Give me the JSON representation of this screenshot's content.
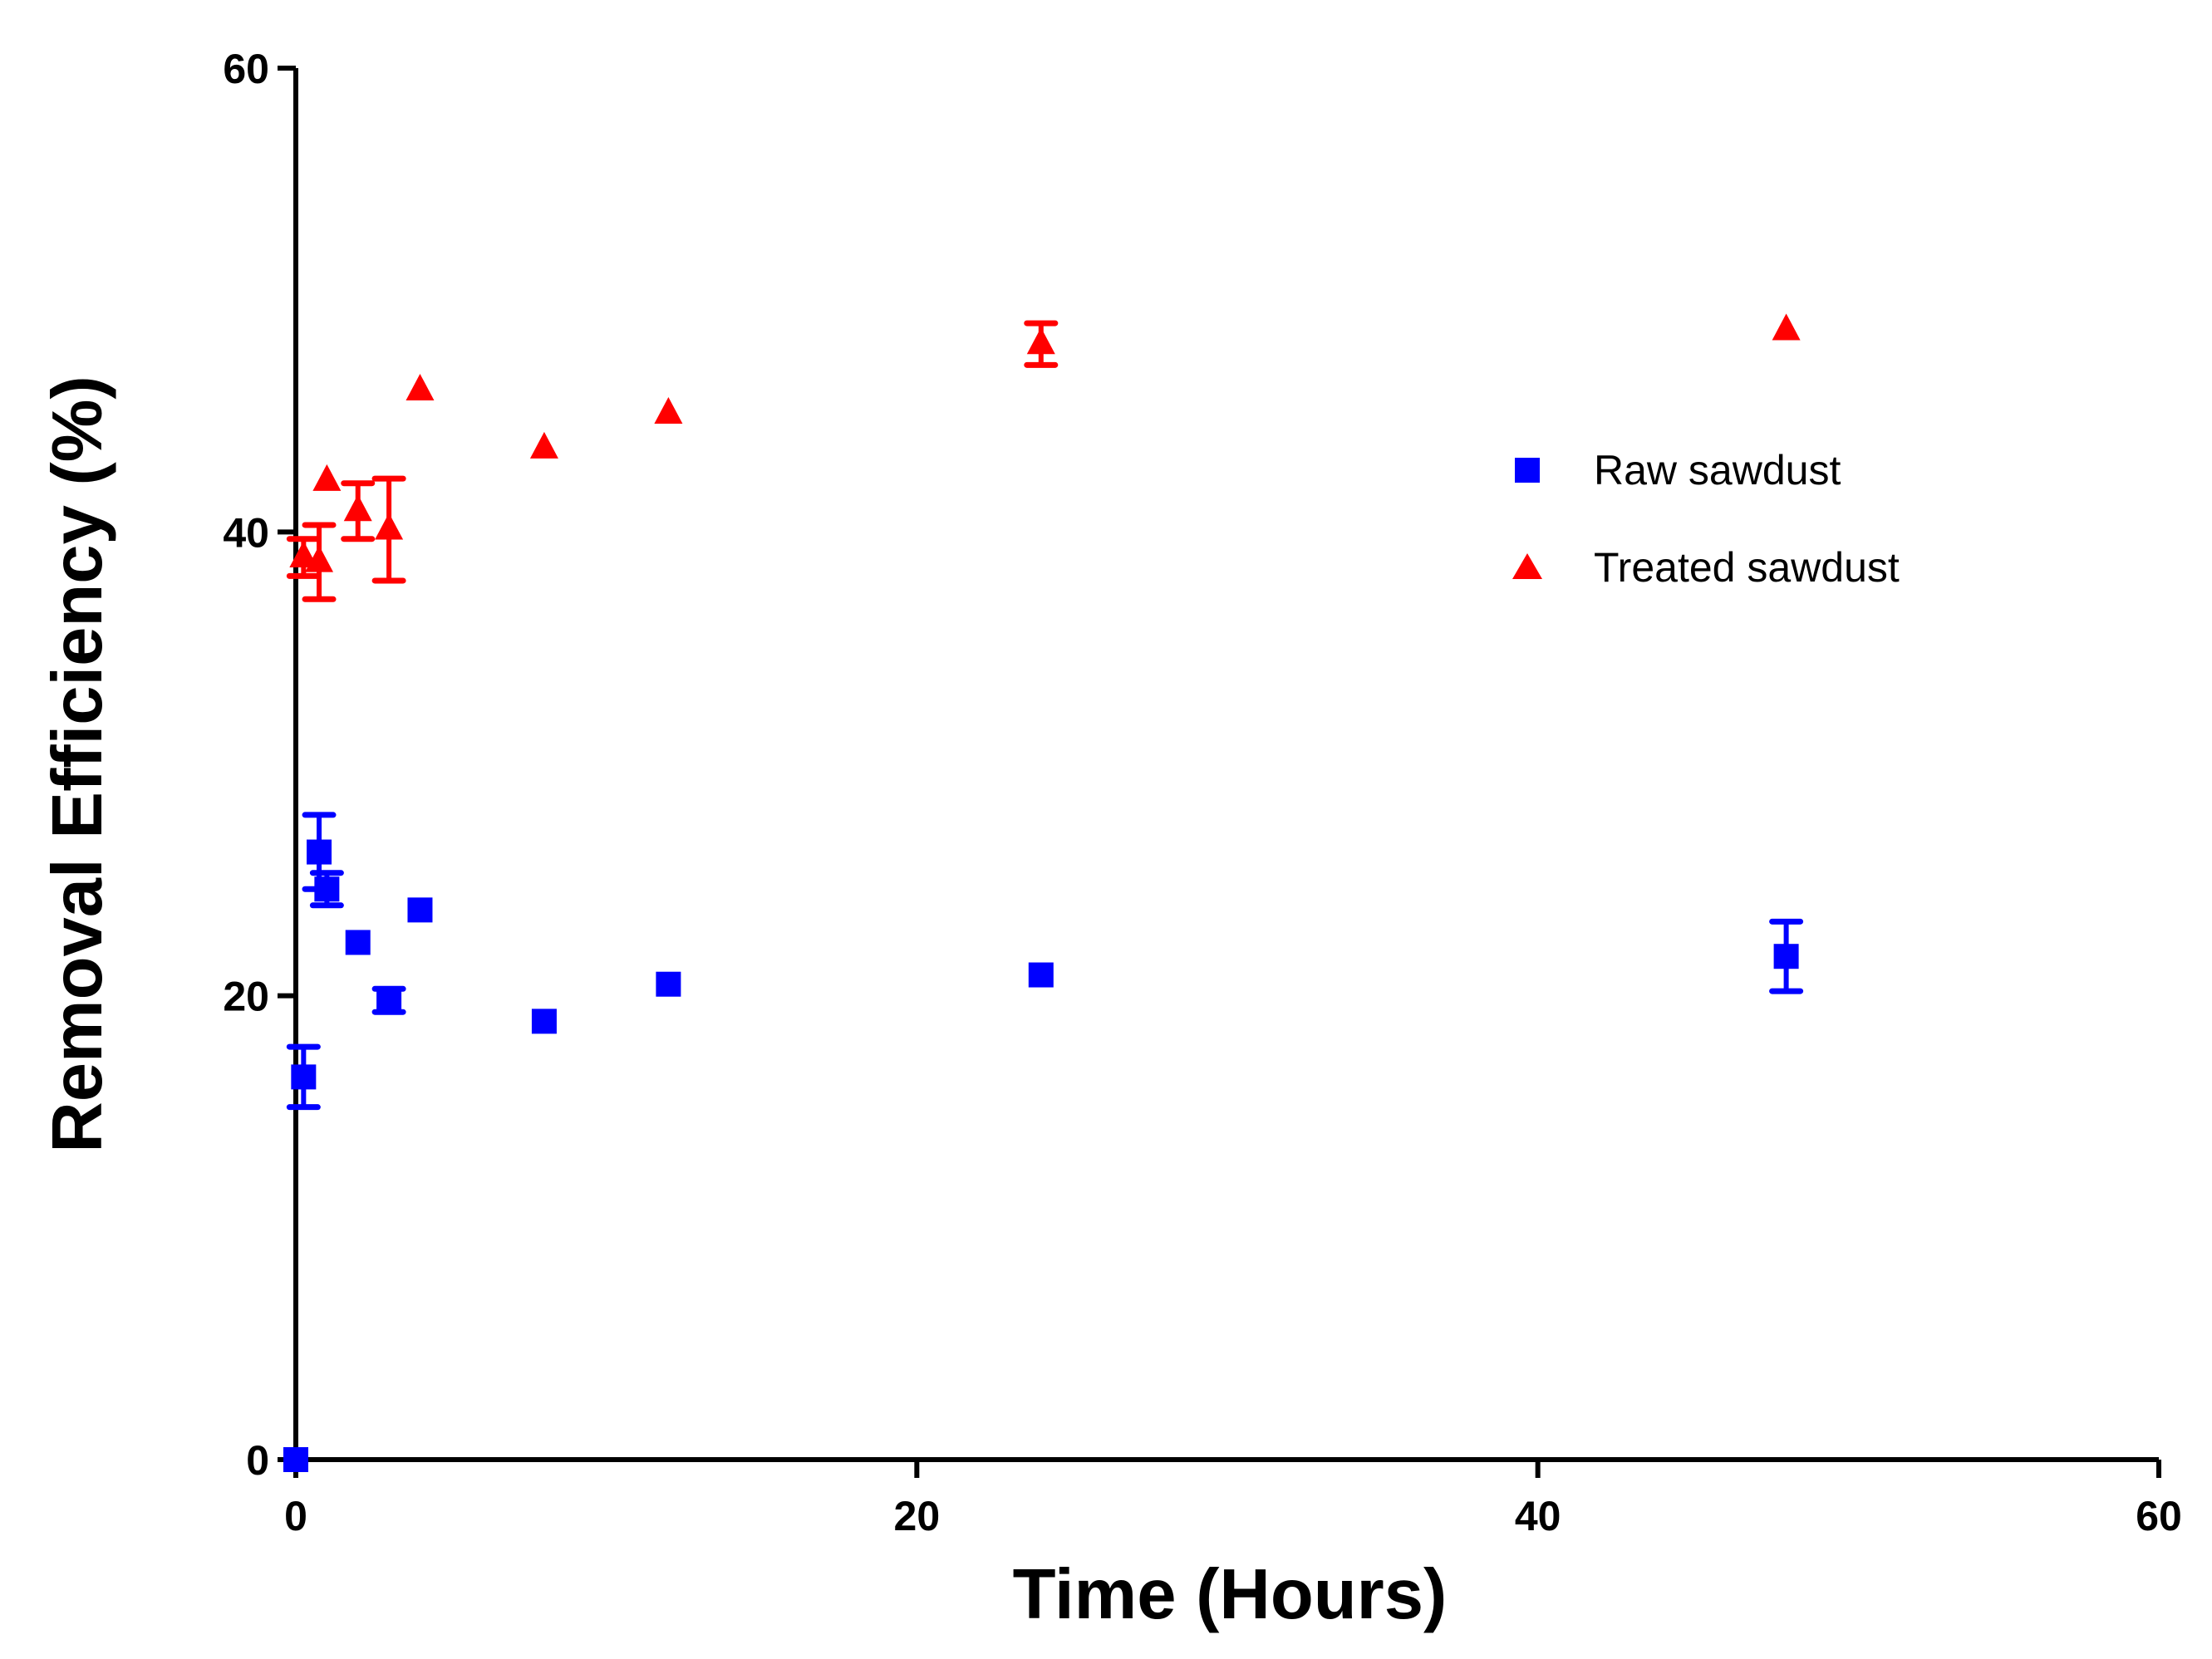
{
  "chart_data": {
    "type": "scatter",
    "title": "",
    "xlabel": "Time (Hours)",
    "ylabel": "Removal Efficiency (%)",
    "xlim": [
      0,
      60
    ],
    "ylim": [
      0,
      60
    ],
    "xticks": [
      0,
      20,
      40,
      60
    ],
    "yticks": [
      0,
      20,
      40,
      60
    ],
    "xtick_labels": [
      "0",
      "20",
      "40",
      "60"
    ],
    "ytick_labels": [
      "0",
      "20",
      "40",
      "60"
    ],
    "grid": false,
    "legend_position": "right-upper",
    "series": [
      {
        "name": "Raw sawdust",
        "marker": "square",
        "color": "#0000ff",
        "points": [
          {
            "x": 0,
            "y": 0,
            "err": 0
          },
          {
            "x": 0.25,
            "y": 16.5,
            "err": 1.3
          },
          {
            "x": 0.75,
            "y": 26.2,
            "err": 1.6
          },
          {
            "x": 1,
            "y": 24.6,
            "err": 0.7
          },
          {
            "x": 2,
            "y": 22.3,
            "err": 0
          },
          {
            "x": 3,
            "y": 19.8,
            "err": 0.5
          },
          {
            "x": 4,
            "y": 23.7,
            "err": 0
          },
          {
            "x": 8,
            "y": 18.9,
            "err": 0
          },
          {
            "x": 12,
            "y": 20.5,
            "err": 0
          },
          {
            "x": 24,
            "y": 20.9,
            "err": 0
          },
          {
            "x": 48,
            "y": 21.7,
            "err": 1.5
          }
        ]
      },
      {
        "name": "Treated sawdust",
        "marker": "triangle",
        "color": "#ff0000",
        "points": [
          {
            "x": 0.25,
            "y": 38.9,
            "err": 0.8
          },
          {
            "x": 0.75,
            "y": 38.7,
            "err": 1.6
          },
          {
            "x": 1,
            "y": 42.2,
            "err": 0
          },
          {
            "x": 2,
            "y": 40.9,
            "err": 1.2
          },
          {
            "x": 3,
            "y": 40.1,
            "err": 2.2
          },
          {
            "x": 4,
            "y": 46.1,
            "err": 0
          },
          {
            "x": 8,
            "y": 43.6,
            "err": 0
          },
          {
            "x": 12,
            "y": 45.1,
            "err": 0
          },
          {
            "x": 24,
            "y": 48.1,
            "err": 0.9
          },
          {
            "x": 48,
            "y": 48.7,
            "err": 0
          }
        ]
      }
    ]
  }
}
